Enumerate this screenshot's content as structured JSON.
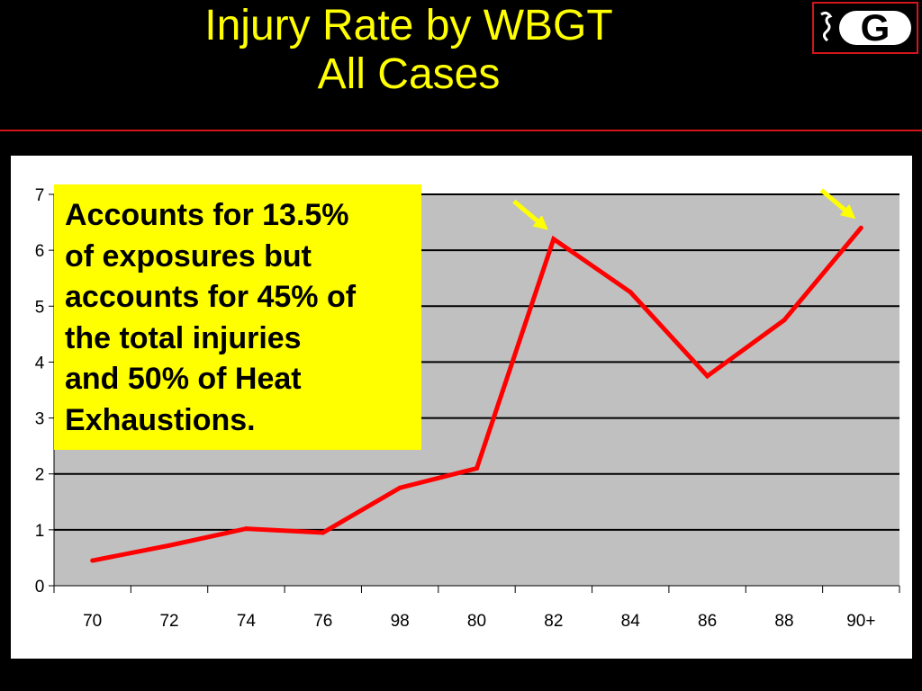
{
  "slide": {
    "title_line1": "Injury Rate by WBGT",
    "title_line2": "All Cases",
    "logo_alt": "G",
    "callout": [
      "Accounts for 13.5%",
      "of exposures but",
      "accounts for 45% of",
      "the total injuries",
      "and 50% of Heat",
      "Exhaustions."
    ]
  },
  "colors": {
    "background": "#000000",
    "title": "#ffff00",
    "rule": "#d4151b",
    "plot_area": "#c0c0c0",
    "line": "#ff0000",
    "callout_bg": "#ffff00",
    "arrow": "#ffff00"
  },
  "chart_data": {
    "type": "line",
    "categories": [
      "70",
      "72",
      "74",
      "76",
      "98",
      "80",
      "82",
      "84",
      "86",
      "88",
      "90+"
    ],
    "series": [
      {
        "values": [
          0.45,
          0.72,
          1.02,
          0.95,
          1.75,
          2.1,
          6.2,
          5.25,
          3.75,
          4.75,
          6.4
        ]
      }
    ],
    "ylim": [
      0,
      7
    ],
    "yticks": [
      "0",
      "1",
      "2",
      "3",
      "4",
      "5",
      "6",
      "7"
    ],
    "xlabel": "",
    "ylabel": "",
    "grid": true,
    "annotations": [
      {
        "type": "arrow",
        "category": "82",
        "value": 6.2
      },
      {
        "type": "arrow",
        "category": "90+",
        "value": 6.4
      }
    ]
  }
}
